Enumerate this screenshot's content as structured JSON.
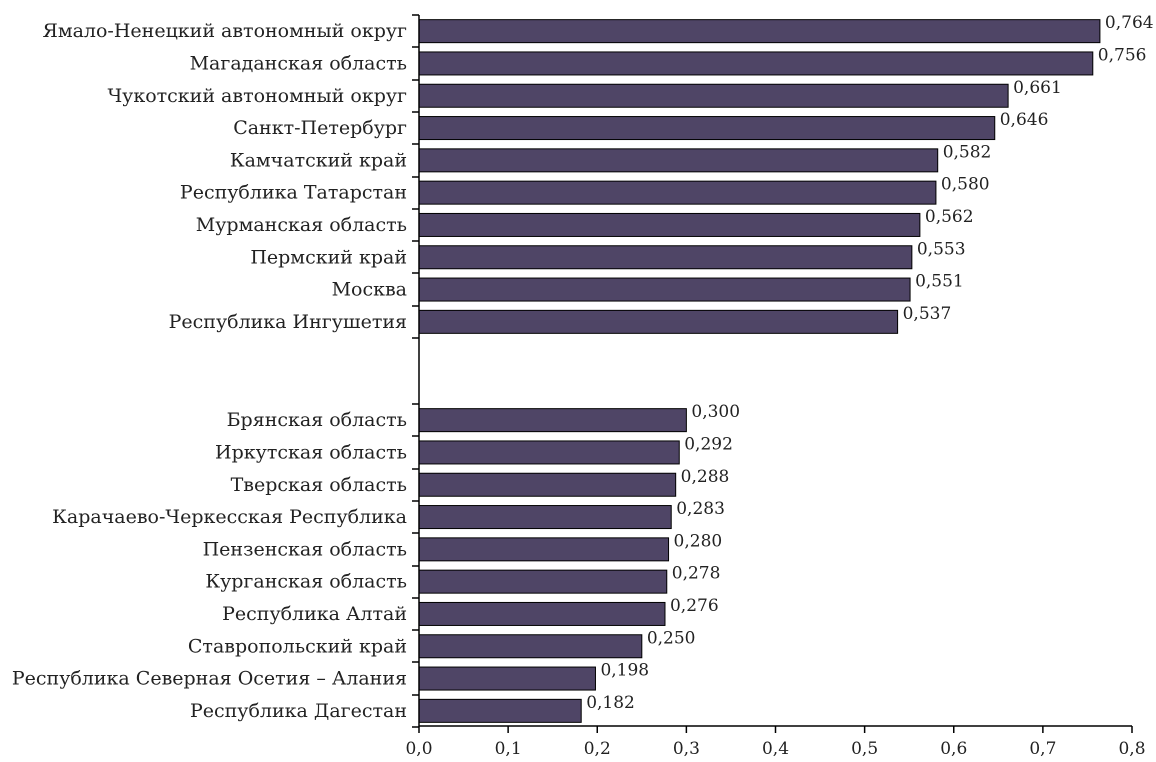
{
  "chart_data": {
    "type": "bar",
    "orientation": "horizontal",
    "title": "",
    "xlabel": "",
    "ylabel": "",
    "xlim": [
      0,
      0.8
    ],
    "x_ticks": [
      "0,0",
      "0,1",
      "0,2",
      "0,3",
      "0,4",
      "0,5",
      "0,6",
      "0,7",
      "0,8"
    ],
    "grid": false,
    "bar_color": "#4f4566",
    "groups": [
      {
        "categories": [
          "Ямало-Ненецкий автономный округ",
          "Магаданская область",
          "Чукотский автономный округ",
          "Санкт-Петербург",
          "Камчатский край",
          "Республика Татарстан",
          "Мурманская область",
          "Пермский край",
          "Москва",
          "Республика Ингушетия"
        ],
        "values": [
          0.764,
          0.756,
          0.661,
          0.646,
          0.582,
          0.58,
          0.562,
          0.553,
          0.551,
          0.537
        ],
        "value_labels": [
          "0,764",
          "0,756",
          "0,661",
          "0,646",
          "0,582",
          "0,580",
          "0,562",
          "0,553",
          "0,551",
          "0,537"
        ]
      },
      {
        "categories": [
          "Брянская область",
          "Иркутская область",
          "Тверская область",
          "Карачаево-Черкесская Республика",
          "Пензенская область",
          "Курганская область",
          "Республика Алтай",
          "Ставропольский край",
          "Республика Северная Осетия – Алания",
          "Республика Дагестан"
        ],
        "values": [
          0.3,
          0.292,
          0.288,
          0.283,
          0.28,
          0.278,
          0.276,
          0.25,
          0.198,
          0.182
        ],
        "value_labels": [
          "0,300",
          "0,292",
          "0,288",
          "0,283",
          "0,280",
          "0,278",
          "0,276",
          "0,250",
          "0,198",
          "0,182"
        ]
      }
    ]
  }
}
